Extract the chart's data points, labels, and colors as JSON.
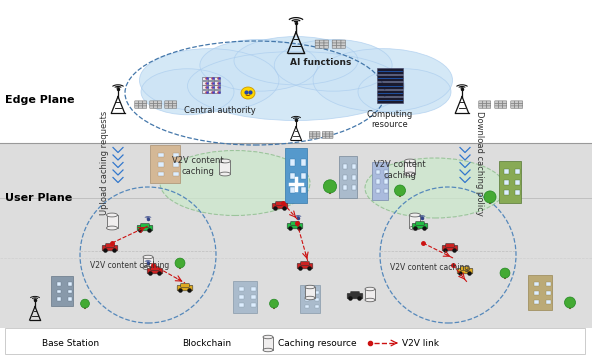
{
  "edge_plane_label": "Edge Plane",
  "user_plane_label": "User Plane",
  "upload_text": "Upload caching requests",
  "download_text": "Download caching policy",
  "v2v_top_left": "V2V content\ncaching",
  "v2v_top_right": "V2V content\ncaching",
  "v2v_bottom_left": "V2V content caching",
  "v2v_bottom_right": "V2V content caching",
  "ai_functions": "AI functions",
  "central_authority": "Central authority",
  "computing_resource": "Computing\nresource",
  "legend_bs": "Base Station",
  "legend_bc": "Blockchain",
  "legend_cr": "Caching resource",
  "legend_v2v": "V2V link",
  "cloud_color": "#cde4f5",
  "ground_color": "#e0e0e0",
  "green_color": "#d4ecd4",
  "dashed_color": "#5588bb",
  "v2v_color": "#cc1111",
  "blue_arrow": "#4488cc",
  "font_plane": 8,
  "font_small": 6,
  "font_legend": 6.5
}
